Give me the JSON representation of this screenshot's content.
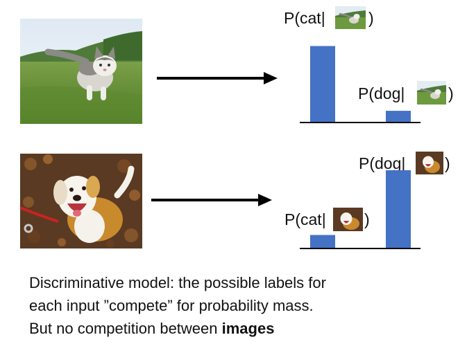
{
  "rows": [
    {
      "image": "cat-photo",
      "labels": [
        {
          "prefix": "P(cat",
          "suffix": ")",
          "thumb": "cat-thumb"
        },
        {
          "prefix": "P(dog",
          "suffix": ")",
          "thumb": "cat-thumb"
        }
      ],
      "bars": [
        {
          "label": "cat",
          "value": 0.85
        },
        {
          "label": "dog",
          "value": 0.13
        }
      ]
    },
    {
      "image": "dog-photo",
      "labels": [
        {
          "prefix": "P(dog",
          "suffix": ")",
          "thumb": "dog-thumb"
        },
        {
          "prefix": "P(cat",
          "suffix": ")",
          "thumb": "dog-thumb"
        }
      ],
      "bars": [
        {
          "label": "cat",
          "value": 0.15
        },
        {
          "label": "dog",
          "value": 0.87
        }
      ]
    }
  ],
  "caption": {
    "line1": "Discriminative model: the possible labels for",
    "line2": "each input ”compete” for probability mass.",
    "line3_prefix": "But no competition between ",
    "line3_bold": "images"
  },
  "colors": {
    "bar": "#4472c4",
    "axis": "#000000"
  }
}
